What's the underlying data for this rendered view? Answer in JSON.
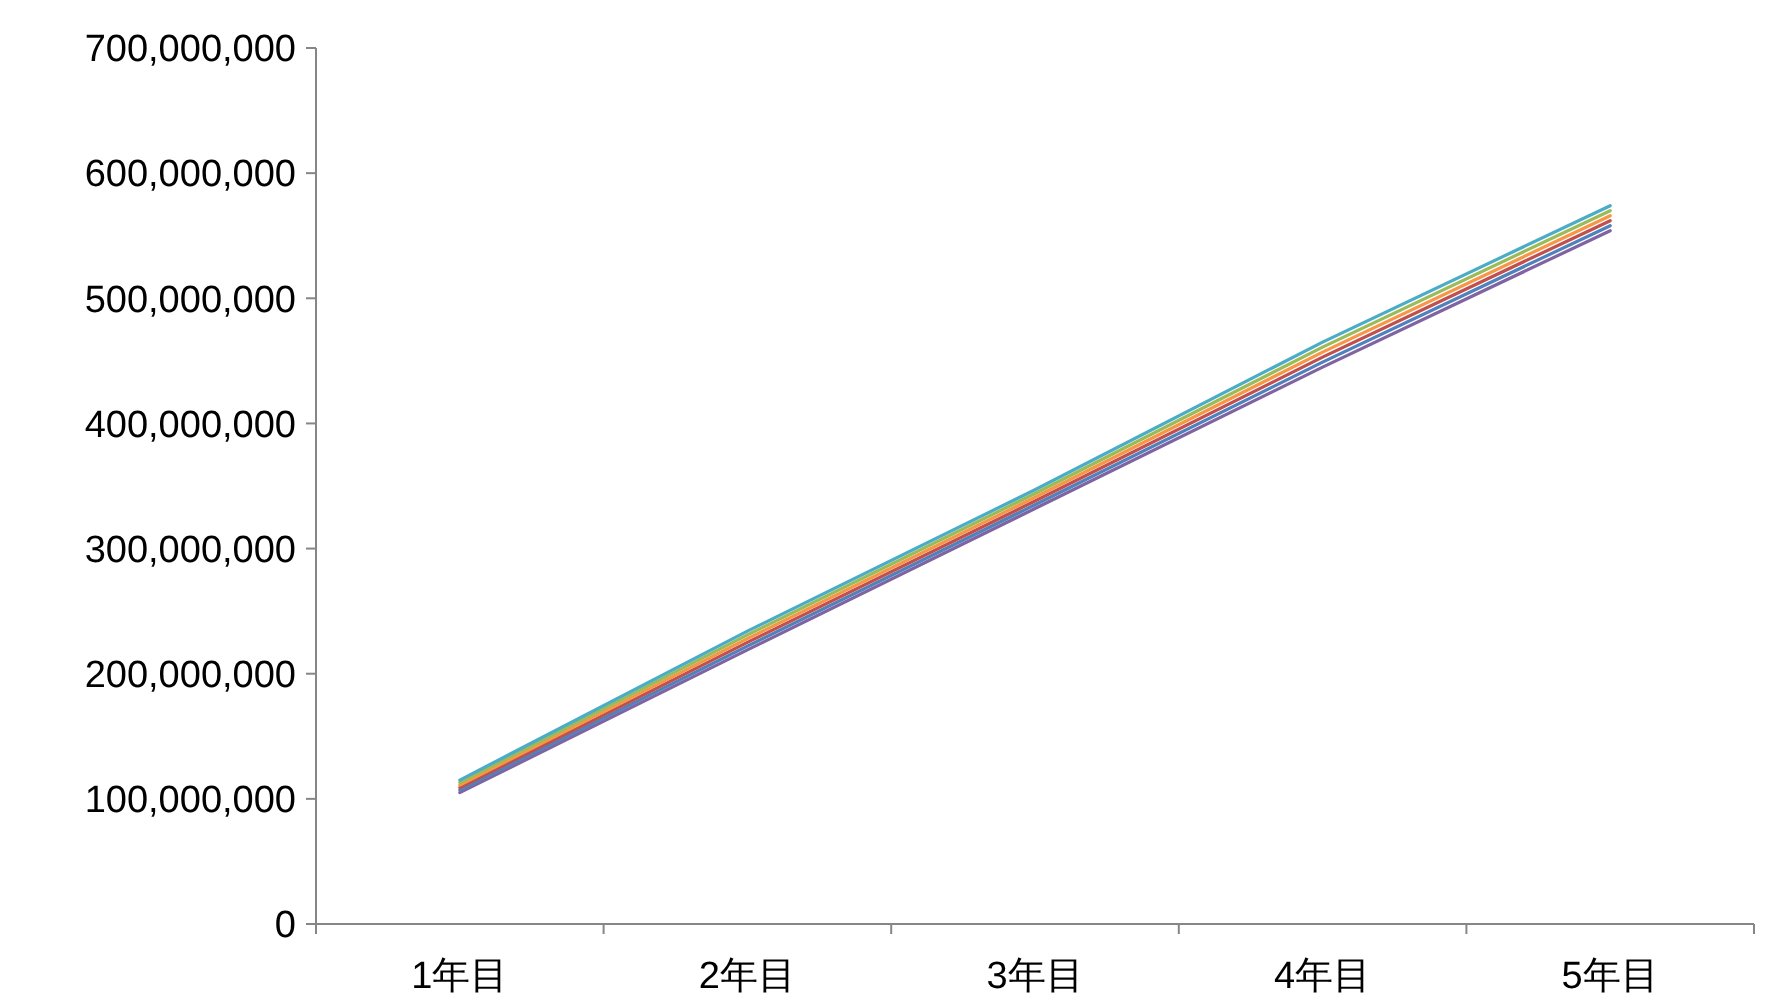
{
  "chart_data": {
    "type": "line",
    "categories": [
      "1年目",
      "2年目",
      "3年目",
      "4年目",
      "5年目"
    ],
    "series": [
      {
        "color": "#8064a2",
        "values": [
          105000000,
          219000000,
          332000000,
          445000000,
          554000000
        ]
      },
      {
        "color": "#4f81bd",
        "values": [
          107000000,
          222000000,
          335000000,
          449000000,
          558000000
        ]
      },
      {
        "color": "#c0504d",
        "values": [
          109000000,
          225000000,
          338000000,
          453000000,
          562000000
        ]
      },
      {
        "color": "#f79646",
        "values": [
          111000000,
          228000000,
          341000000,
          457000000,
          566000000
        ]
      },
      {
        "color": "#9bbb59",
        "values": [
          113000000,
          231000000,
          344000000,
          461000000,
          570000000
        ]
      },
      {
        "color": "#4bacc6",
        "values": [
          115000000,
          234000000,
          347000000,
          465000000,
          574000000
        ]
      }
    ],
    "ylim": [
      0,
      700000000
    ],
    "yticks": [
      0,
      {
        "value": 100000000,
        "label": "100,000,000"
      },
      {
        "value": 200000000,
        "label": "200,000,000"
      },
      {
        "value": 300000000,
        "label": "300,000,000"
      },
      {
        "value": 400000000,
        "label": "400,000,000"
      },
      {
        "value": 500000000,
        "label": "500,000,000"
      },
      {
        "value": 600000000,
        "label": "600,000,000"
      },
      {
        "value": 700000000,
        "label": "700,000,000"
      }
    ],
    "grid": false,
    "marker": "none",
    "line_style": "solid"
  }
}
